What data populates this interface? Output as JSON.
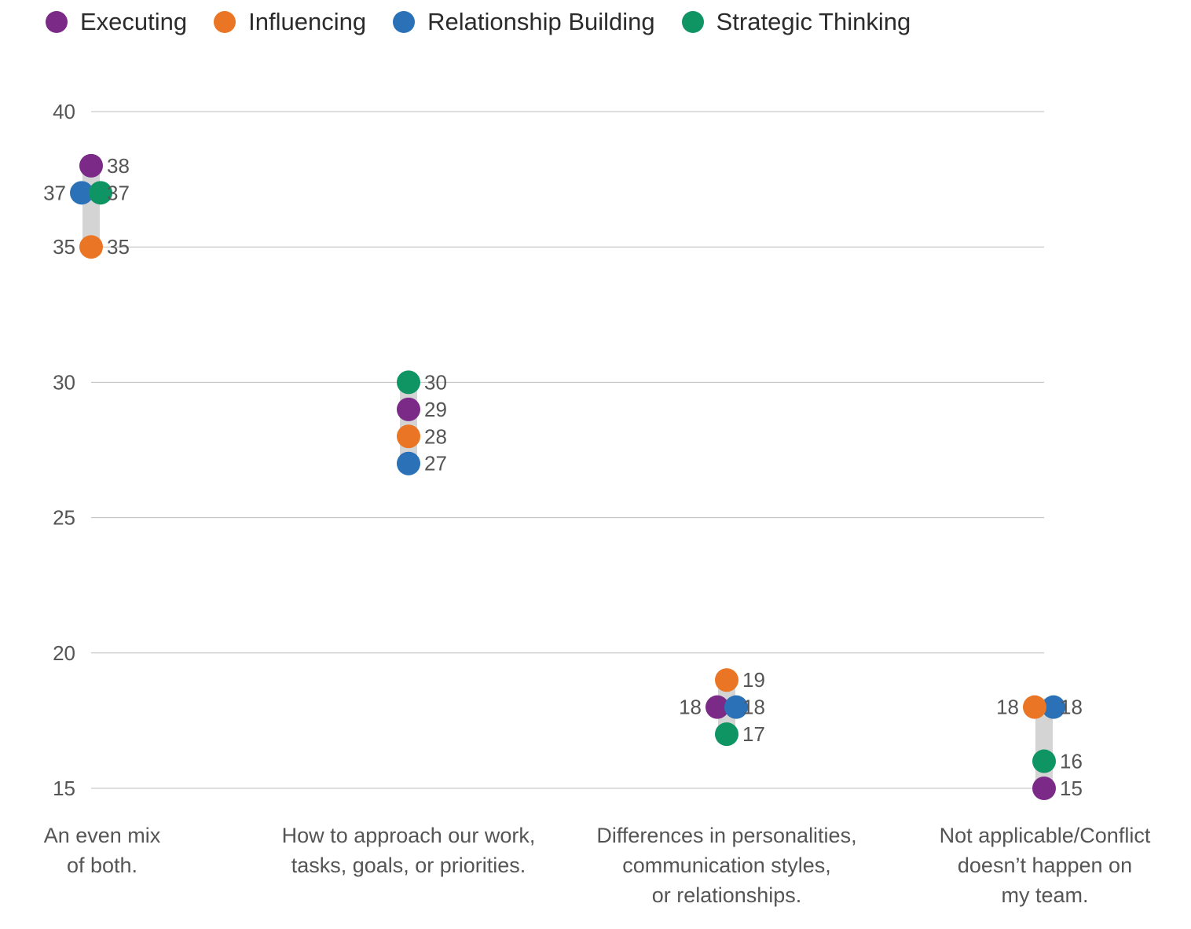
{
  "chart_data": {
    "type": "scatter",
    "categories": [
      [
        "An even mix",
        "of both."
      ],
      [
        "How to approach our work,",
        "tasks, goals, or priorities."
      ],
      [
        "Differences in personalities,",
        "communication styles,",
        "or relationships."
      ],
      [
        "Not applicable/Conflict",
        "doesn’t happen on",
        "my team."
      ]
    ],
    "series": [
      {
        "name": "Executing",
        "color": "#7b2a87",
        "values": [
          38,
          29,
          18,
          15
        ]
      },
      {
        "name": "Influencing",
        "color": "#ea7524",
        "values": [
          35,
          28,
          19,
          18
        ]
      },
      {
        "name": "Relationship Building",
        "color": "#2a71b8",
        "values": [
          37,
          27,
          18,
          18
        ]
      },
      {
        "name": "Strategic Thinking",
        "color": "#0f9464",
        "values": [
          37,
          30,
          17,
          16
        ]
      }
    ],
    "ylim": [
      15,
      40
    ],
    "yticks": [
      15,
      20,
      25,
      30,
      35,
      40
    ],
    "grid": true,
    "legend": "top-left",
    "range_bar_color": "#d4d4d4",
    "title": "",
    "xlabel": "",
    "ylabel": ""
  }
}
